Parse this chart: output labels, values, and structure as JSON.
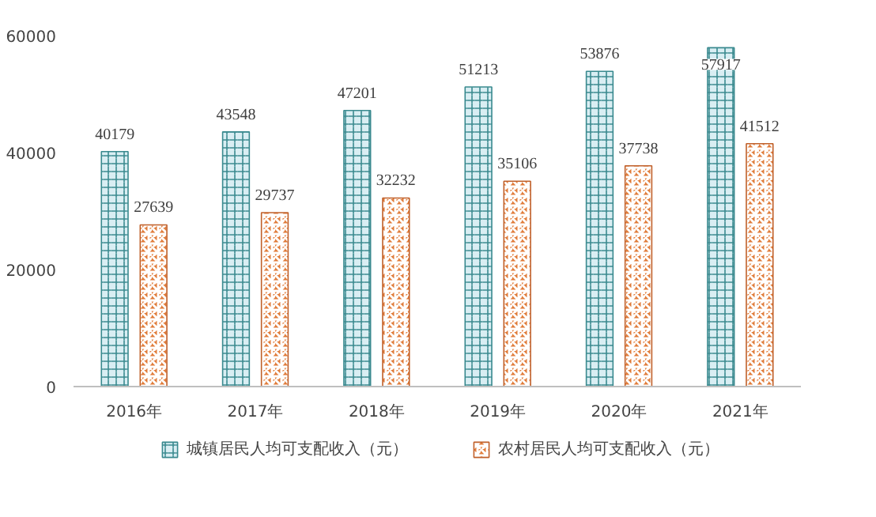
{
  "chart_data": {
    "type": "bar",
    "categories": [
      "2016年",
      "2017年",
      "2018年",
      "2019年",
      "2020年",
      "2021年"
    ],
    "series": [
      {
        "name": "城镇居民人均可支配收入（元）",
        "color": "#d9eef3",
        "values": [
          40179,
          43548,
          47201,
          51213,
          53876,
          57917
        ]
      },
      {
        "name": "农村居民人均可支配收入（元）",
        "color": "#e07b39",
        "values": [
          27639,
          29737,
          32232,
          35106,
          37738,
          41512
        ]
      }
    ],
    "ylim": [
      0,
      60000
    ],
    "yticks": [
      0,
      20000,
      40000,
      60000
    ],
    "grid": false,
    "legend": "bottom",
    "data_labels": true
  }
}
